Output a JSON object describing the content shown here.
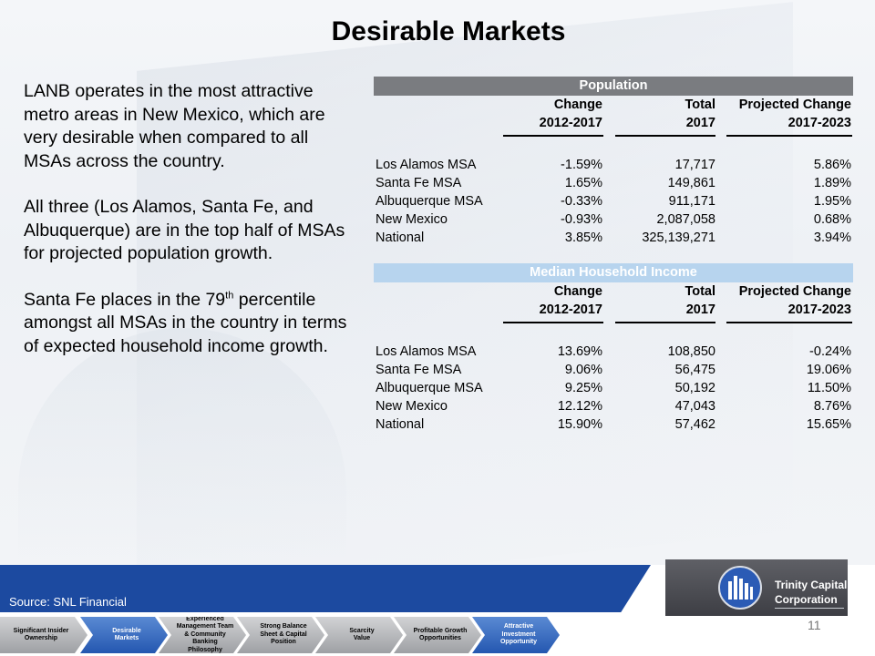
{
  "slide": {
    "title": "Desirable Markets",
    "page_number": "11",
    "source": "Source: SNL Financial"
  },
  "bullets": {
    "p1": "LANB operates in the most attractive metro areas in New Mexico, which are very desirable when compared to all MSAs across the country.",
    "p2": "All three (Los Alamos, Santa Fe, and Albuquerque) are in the top half of MSAs for projected population growth.",
    "p3_before": "Santa Fe places in the 79",
    "p3_sup": "th",
    "p3_after": " percentile amongst all MSAs in the country in terms of expected household income growth."
  },
  "population": {
    "band": "Population",
    "headers": [
      {
        "top": "Change",
        "bottom": "2012-2017"
      },
      {
        "top": "Total",
        "bottom": "2017"
      },
      {
        "top": "Projected Change",
        "bottom": "2017-2023"
      }
    ],
    "rows": [
      {
        "name": "Los Alamos MSA",
        "change": "-1.59%",
        "total": "17,717",
        "projected": "5.86%"
      },
      {
        "name": "Santa Fe MSA",
        "change": "1.65%",
        "total": "149,861",
        "projected": "1.89%"
      },
      {
        "name": "Albuquerque MSA",
        "change": "-0.33%",
        "total": "911,171",
        "projected": "1.95%"
      },
      {
        "name": "New Mexico",
        "change": "-0.93%",
        "total": "2,087,058",
        "projected": "0.68%"
      },
      {
        "name": "National",
        "change": "3.85%",
        "total": "325,139,271",
        "projected": "3.94%"
      }
    ]
  },
  "income": {
    "band": "Median Household Income",
    "headers": [
      {
        "top": "Change",
        "bottom": "2012-2017"
      },
      {
        "top": "Total",
        "bottom": "2017"
      },
      {
        "top": "Projected Change",
        "bottom": "2017-2023"
      }
    ],
    "rows": [
      {
        "name": "Los Alamos MSA",
        "change": "13.69%",
        "total": "108,850",
        "projected": "-0.24%"
      },
      {
        "name": "Santa Fe MSA",
        "change": "9.06%",
        "total": "56,475",
        "projected": "19.06%"
      },
      {
        "name": "Albuquerque MSA",
        "change": "9.25%",
        "total": "50,192",
        "projected": "11.50%"
      },
      {
        "name": "New Mexico",
        "change": "12.12%",
        "total": "47,043",
        "projected": "8.76%"
      },
      {
        "name": "National",
        "change": "15.90%",
        "total": "57,462",
        "projected": "15.65%"
      }
    ]
  },
  "logo": {
    "line1": "Trinity Capital",
    "line2": "Corporation"
  },
  "nav": [
    {
      "line1": "Significant Insider",
      "line2": "Ownership",
      "line3": "",
      "line4": ""
    },
    {
      "line1": "Desirable",
      "line2": "Markets",
      "line3": "",
      "line4": ""
    },
    {
      "line1": "Experienced",
      "line2": "Management Team",
      "line3": "& Community",
      "line4": "Banking Philosophy"
    },
    {
      "line1": "Strong Balance",
      "line2": "Sheet & Capital",
      "line3": "Position",
      "line4": ""
    },
    {
      "line1": "Scarcity",
      "line2": "Value",
      "line3": "",
      "line4": ""
    },
    {
      "line1": "Profitable Growth",
      "line2": "Opportunities",
      "line3": "",
      "line4": ""
    },
    {
      "line1": "Attractive",
      "line2": "Investment",
      "line3": "Opportunity",
      "line4": ""
    }
  ],
  "colors": {
    "population_band": "#7a7c80",
    "income_band": "#b7d4ee",
    "footer_blue": "#1c4aa0",
    "nav_active": "#2457b0"
  }
}
